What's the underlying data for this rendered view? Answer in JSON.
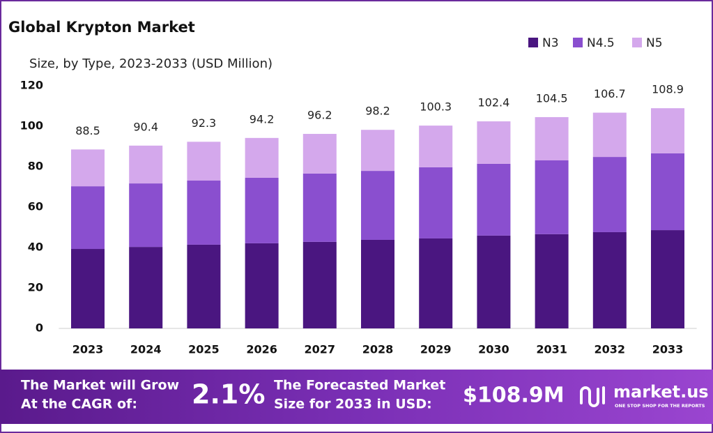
{
  "chart_data": {
    "type": "stacked-bar",
    "title": "Global Krypton Market",
    "subtitle": "Size, by Type, 2023-2033 (USD Million)",
    "categories": [
      "2023",
      "2024",
      "2025",
      "2026",
      "2027",
      "2028",
      "2029",
      "2030",
      "2031",
      "2032",
      "2033"
    ],
    "series": [
      {
        "name": "N3",
        "color": "#4a1680",
        "values": [
          39.3,
          40.3,
          41.4,
          42.1,
          42.8,
          43.8,
          44.5,
          45.9,
          46.6,
          47.6,
          48.6
        ]
      },
      {
        "name": "N4.5",
        "color": "#8a4fcf",
        "values": [
          31.0,
          31.4,
          31.7,
          32.4,
          33.8,
          34.1,
          35.2,
          35.5,
          36.5,
          37.2,
          38.0
        ]
      },
      {
        "name": "N5",
        "color": "#d4a8ec",
        "values": [
          18.2,
          18.7,
          19.2,
          19.7,
          19.6,
          20.3,
          20.6,
          21.0,
          21.4,
          21.9,
          22.3
        ]
      }
    ],
    "totals": [
      88.5,
      90.4,
      92.3,
      94.2,
      96.2,
      98.2,
      100.3,
      102.4,
      104.5,
      106.7,
      108.9
    ],
    "ylim": [
      0,
      120
    ],
    "yticks": [
      0,
      20,
      40,
      60,
      80,
      100,
      120
    ],
    "grid": false,
    "legend": "top-right"
  },
  "footer": {
    "cagr_text": [
      "The Market will Grow",
      "At the CAGR of:"
    ],
    "cagr": "2.1%",
    "forecast_text": [
      "The Forecasted Market",
      "Size for 2033 in USD:"
    ],
    "forecast": "$108.9M",
    "logo": "market.us",
    "tagline": "ONE STOP SHOP FOR THE REPORTS"
  }
}
